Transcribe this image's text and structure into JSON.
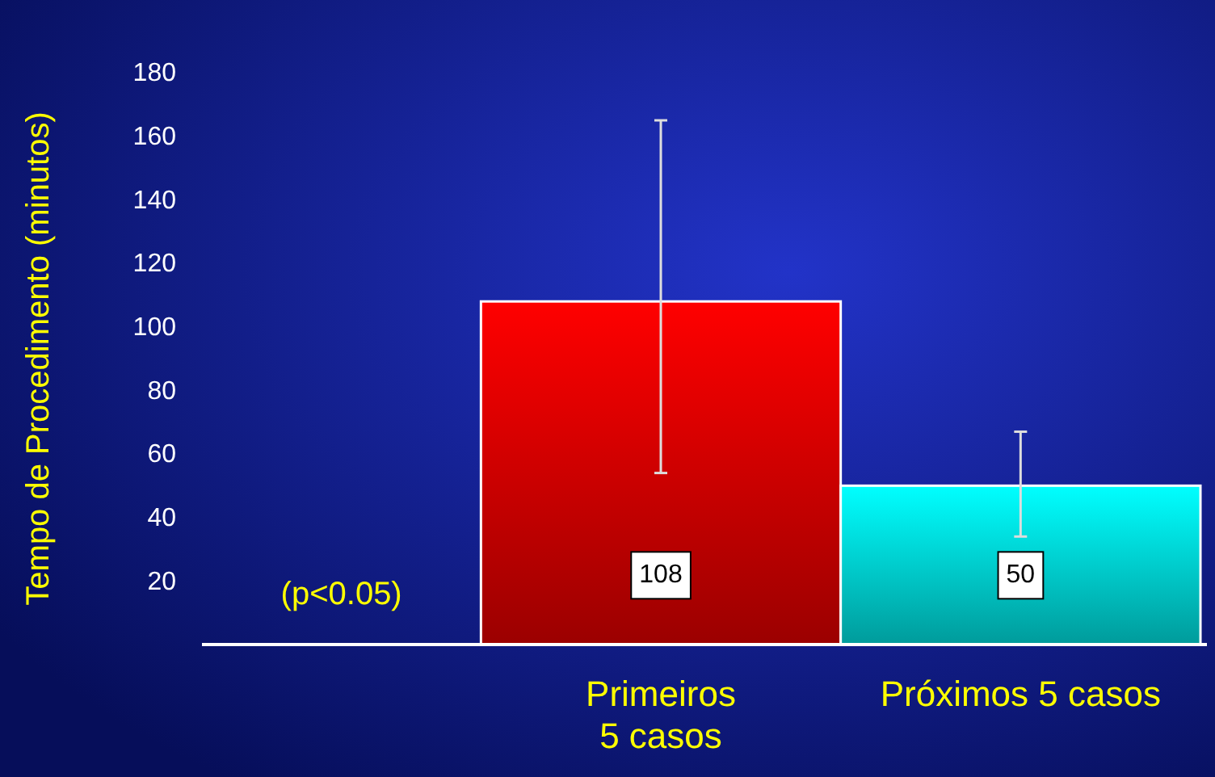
{
  "chart_data": {
    "type": "bar",
    "ylabel": "Tempo de Procedimento  (minutos)",
    "categories": [
      null,
      "Primeiros\n5 casos",
      "Próximos 5 casos"
    ],
    "values": [
      null,
      108,
      50
    ],
    "colors": [
      null,
      "#ff0000",
      "#00ffff"
    ],
    "errors": [
      null,
      [
        54,
        165
      ],
      [
        34,
        67
      ]
    ],
    "data_labels": true,
    "ylim": [
      0,
      180
    ],
    "yticks": [
      20,
      40,
      60,
      80,
      100,
      120,
      140,
      160,
      180
    ],
    "annotations": [
      "(p<0.05)"
    ]
  }
}
